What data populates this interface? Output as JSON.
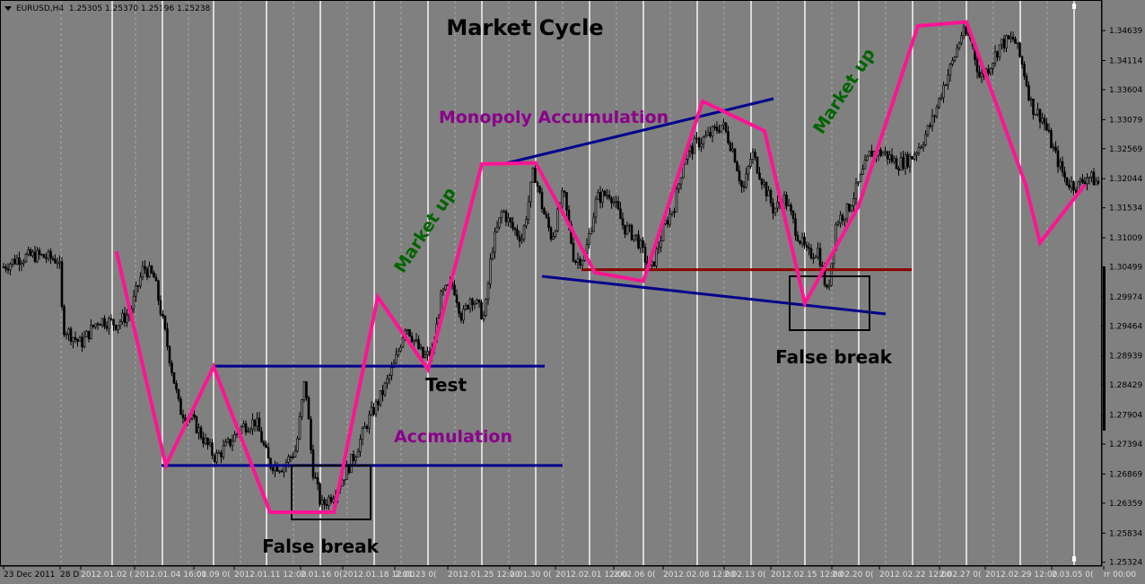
{
  "header": {
    "symbol": "EURUSD,H4",
    "ohlc": "1.25305 1.25370 1.25196 1.25238"
  },
  "colors": {
    "background": "#808080",
    "candle": "#000000",
    "vline": "#ffffff",
    "trend": "#ff1493",
    "level": "#00008b",
    "resistance": "#8b0000",
    "box": "#000000",
    "green_label": "#006400",
    "purple_label": "#8b008b"
  },
  "chart_data": {
    "type": "candlestick",
    "title": "Market Cycle",
    "y_ticks": [
      "1.34639",
      "1.34114",
      "1.33604",
      "1.33079",
      "1.32569",
      "1.32044",
      "1.31534",
      "1.31009",
      "1.30499",
      "1.29974",
      "1.29464",
      "1.28939",
      "1.28429",
      "1.27904",
      "1.27394",
      "1.26869",
      "1.26359",
      "1.25834",
      "1.25324"
    ],
    "x_ticks": [
      "23 Dec 2011",
      "28 D",
      "2012.01.02 (",
      "2012.01.04 16:00",
      ".01.09 0(",
      "2012.01.11 12:00",
      "2.01.16 0(",
      "2012.01.18 12:00",
      "2.01.23 0(",
      "2012.01.25 12:00",
      "2.01.30 0(",
      "2012.02.01 12:00",
      "2.02.06 0(",
      "2012.02.08 12:00",
      "2.02.13 0(",
      "2012.02.15 12:00",
      "2.02.20 0(",
      "2012.02.22 12:00",
      "2.02.27 0(",
      "2012.02.29 12:00",
      "2.03.05 0(",
      "rr 00:00"
    ],
    "y_range": [
      1.252,
      1.348
    ],
    "annotations": [
      {
        "text": "Market Cycle",
        "color": "#000000"
      },
      {
        "text": "Monopoly Accumulation",
        "color": "#8b008b"
      },
      {
        "text": "Market up",
        "color": "#006400"
      },
      {
        "text": "Market up",
        "color": "#006400"
      },
      {
        "text": "Test",
        "color": "#000000"
      },
      {
        "text": "Accmulation",
        "color": "#8b008b"
      },
      {
        "text": "False break",
        "color": "#000000"
      },
      {
        "text": "False break",
        "color": "#000000"
      }
    ],
    "trend_path": [
      {
        "t": "2012.01.02 04:00",
        "price": 1.3077
      },
      {
        "t": "2012.01.04 08:00",
        "price": 1.2702
      },
      {
        "t": "2012.01.09 00:00",
        "price": 1.2875
      },
      {
        "t": "2012.01.11 08:00",
        "price": 1.262
      },
      {
        "t": "2012.01.16 12:00",
        "price": 1.262
      },
      {
        "t": "2012.01.18 08:00",
        "price": 1.2997
      },
      {
        "t": "2012.01.23 00:00",
        "price": 1.287
      },
      {
        "t": "2012.01.25 00:00",
        "price": 1.323
      },
      {
        "t": "2012.01.30 00:00",
        "price": 1.3232
      },
      {
        "t": "2012.02.01 12:00",
        "price": 1.304
      },
      {
        "t": "2012.02.06 00:00",
        "price": 1.3025
      },
      {
        "t": "2012.02.08 12:00",
        "price": 1.334
      },
      {
        "t": "2012.02.13 12:00",
        "price": 1.3288
      },
      {
        "t": "2012.02.15 00:00",
        "price": 1.2986
      },
      {
        "t": "2012.02.20 00:00",
        "price": 1.3157
      },
      {
        "t": "2012.02.22 12:00",
        "price": 1.3472
      },
      {
        "t": "2012.02.27 00:00",
        "price": 1.3479
      },
      {
        "t": "2012.02.29 12:00",
        "price": 1.3194
      },
      {
        "t": "2012.03.01 20:00",
        "price": 1.3092
      },
      {
        "t": "2012.03.05 12:00",
        "price": 1.3194
      }
    ],
    "levels": [
      {
        "name": "accumulation-top",
        "price": 1.2876
      },
      {
        "name": "accumulation-bottom",
        "price": 1.2702
      },
      {
        "name": "resistance",
        "price": 1.3045
      }
    ]
  }
}
